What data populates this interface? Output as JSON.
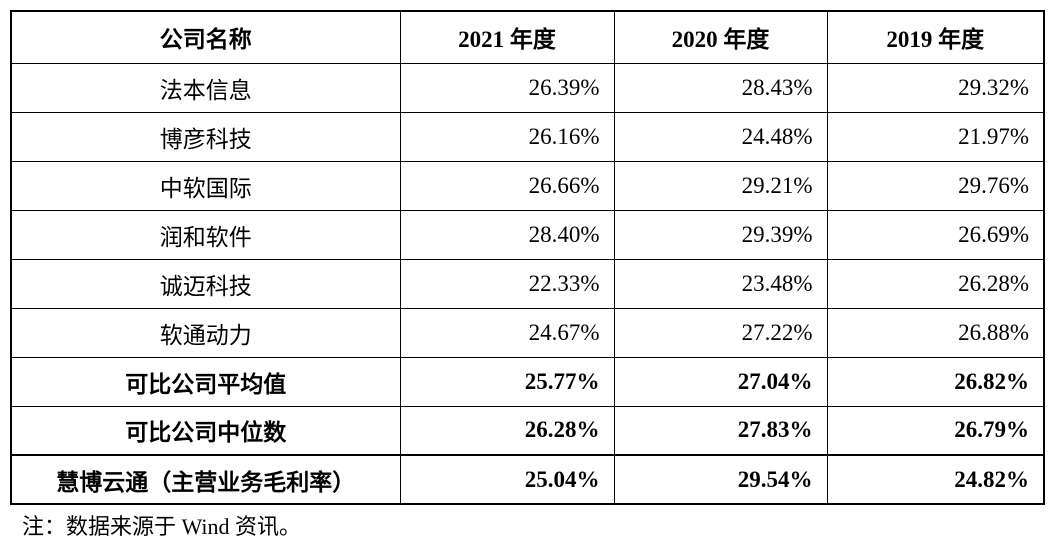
{
  "table": {
    "header": [
      "公司名称",
      "2021 年度",
      "2020 年度",
      "2019 年度"
    ],
    "rows": [
      [
        "法本信息",
        "26.39%",
        "28.43%",
        "29.32%"
      ],
      [
        "博彦科技",
        "26.16%",
        "24.48%",
        "21.97%"
      ],
      [
        "中软国际",
        "26.66%",
        "29.21%",
        "29.76%"
      ],
      [
        "润和软件",
        "28.40%",
        "29.39%",
        "26.69%"
      ],
      [
        "诚迈科技",
        "22.33%",
        "23.48%",
        "26.28%"
      ],
      [
        "软通动力",
        "24.67%",
        "27.22%",
        "26.88%"
      ],
      [
        "可比公司平均值",
        "25.77%",
        "27.04%",
        "26.82%"
      ],
      [
        "可比公司中位数",
        "26.28%",
        "27.83%",
        "26.79%"
      ],
      [
        "慧博云通（主营业务毛利率）",
        "25.04%",
        "29.54%",
        "24.82%"
      ]
    ]
  },
  "note": "注：数据来源于 Wind 资讯。"
}
